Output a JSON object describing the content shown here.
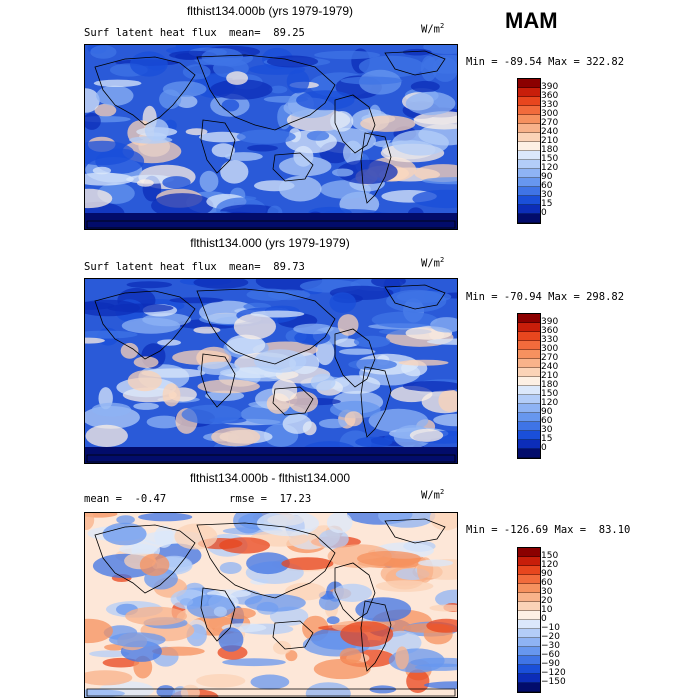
{
  "season": "MAM",
  "units_base": "W/m",
  "units_exp": "2",
  "panels": [
    {
      "title": "flthist134.000b (yrs 1979-1979)",
      "left_label": "Surf latent heat flux",
      "right_label": "mean=  89.25",
      "minmax": "Min = -89.54 Max = 322.82"
    },
    {
      "title": "flthist134.000 (yrs 1979-1979)",
      "left_label": "Surf latent heat flux",
      "right_label": "mean=  89.73",
      "minmax": "Min = -70.94 Max = 298.82"
    },
    {
      "title": "flthist134.000b - flthist134.000",
      "left_label": "mean =  -0.47",
      "right_label": "rmse =  17.23",
      "minmax": "Min = -126.69 Max =  83.10"
    }
  ],
  "chart_data": [
    {
      "type": "heatmap",
      "title": "flthist134.000b (yrs 1979-1979)",
      "variable": "Surf latent heat flux",
      "units": "W/m2",
      "mean": 89.25,
      "min": -89.54,
      "max": 322.82,
      "colorbar_levels": [
        "390",
        "360",
        "330",
        "300",
        "270",
        "240",
        "210",
        "180",
        "150",
        "120",
        "90",
        "60",
        "30",
        "15",
        "0"
      ],
      "colorbar_colors": [
        "#8b0000",
        "#c81e0a",
        "#e8461e",
        "#f26b3c",
        "#f6915f",
        "#f8b28a",
        "#fbd3b7",
        "#fdf0e4",
        "#dbe8fb",
        "#b3cdf8",
        "#8eb3f4",
        "#6797ef",
        "#3f74e6",
        "#1a4fd9",
        "#0c2db8",
        "#020c6b"
      ]
    },
    {
      "type": "heatmap",
      "title": "flthist134.000 (yrs 1979-1979)",
      "variable": "Surf latent heat flux",
      "units": "W/m2",
      "mean": 89.73,
      "min": -70.94,
      "max": 298.82,
      "colorbar_levels": [
        "390",
        "360",
        "330",
        "300",
        "270",
        "240",
        "210",
        "180",
        "150",
        "120",
        "90",
        "60",
        "30",
        "15",
        "0"
      ],
      "colorbar_colors": [
        "#8b0000",
        "#c81e0a",
        "#e8461e",
        "#f26b3c",
        "#f6915f",
        "#f8b28a",
        "#fbd3b7",
        "#fdf0e4",
        "#dbe8fb",
        "#b3cdf8",
        "#8eb3f4",
        "#6797ef",
        "#3f74e6",
        "#1a4fd9",
        "#0c2db8",
        "#020c6b"
      ]
    },
    {
      "type": "heatmap",
      "title": "flthist134.000b - flthist134.000",
      "units": "W/m2",
      "mean": -0.47,
      "rmse": 17.23,
      "min": -126.69,
      "max": 83.1,
      "colorbar_levels": [
        "150",
        "120",
        "90",
        "60",
        "30",
        "20",
        "10",
        "0",
        "−10",
        "−20",
        "−30",
        "−60",
        "−90",
        "−120",
        "−150"
      ],
      "colorbar_colors": [
        "#8b0000",
        "#c81e0a",
        "#e8461e",
        "#f26b3c",
        "#f6915f",
        "#f8b28a",
        "#fbd3b7",
        "#fdf0e4",
        "#dbe8fb",
        "#b3cdf8",
        "#8eb3f4",
        "#6797ef",
        "#3f74e6",
        "#1a4fd9",
        "#0c2db8",
        "#020c6b"
      ]
    }
  ]
}
